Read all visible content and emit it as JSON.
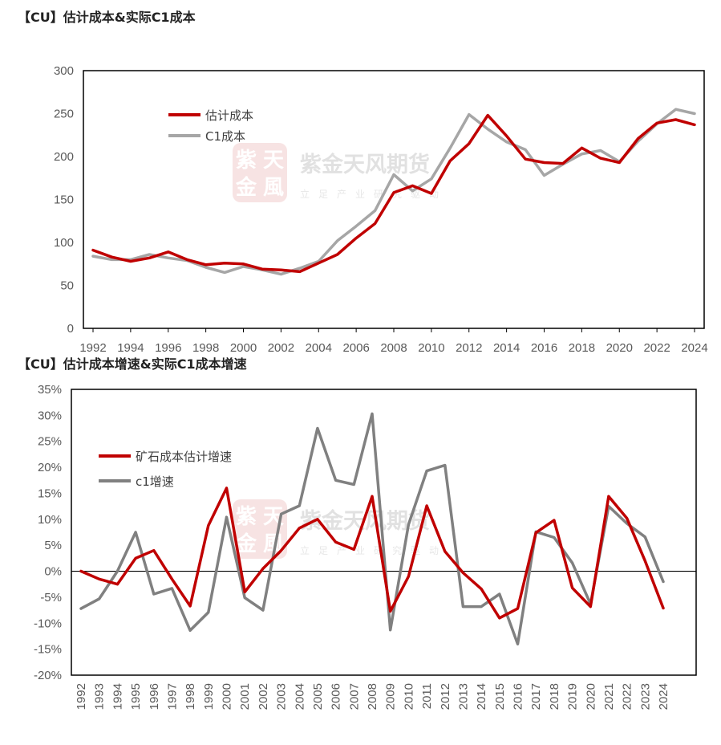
{
  "chart_data": [
    {
      "type": "line",
      "title": "【CU】估计成本&实际C1成本",
      "x": [
        1992,
        1993,
        1994,
        1995,
        1996,
        1997,
        1998,
        1999,
        2000,
        2001,
        2002,
        2003,
        2004,
        2005,
        2006,
        2007,
        2008,
        2009,
        2010,
        2011,
        2012,
        2013,
        2014,
        2015,
        2016,
        2017,
        2018,
        2019,
        2020,
        2021,
        2022,
        2023,
        2024
      ],
      "x_tick_labels": [
        "1992",
        "1994",
        "1996",
        "1998",
        "2000",
        "2002",
        "2004",
        "2006",
        "2008",
        "2010",
        "2012",
        "2014",
        "2016",
        "2018",
        "2020",
        "2022",
        "2024"
      ],
      "ylim": [
        0,
        300
      ],
      "y_tick_labels": [
        "0",
        "50",
        "100",
        "150",
        "200",
        "250",
        "300"
      ],
      "grid": false,
      "legend_position": "top-left",
      "series": [
        {
          "name": "估计成本",
          "color": "#c00000",
          "values": [
            91,
            83,
            78,
            82,
            89,
            80,
            74,
            76,
            75,
            69,
            68,
            66,
            76,
            86,
            105,
            122,
            158,
            166,
            157,
            195,
            215,
            248,
            224,
            197,
            193,
            192,
            210,
            198,
            193,
            221,
            239,
            243,
            237
          ]
        },
        {
          "name": "C1成本",
          "color": "#a6a6a6",
          "values": [
            84,
            80,
            80,
            86,
            82,
            79,
            71,
            65,
            72,
            68,
            63,
            70,
            78,
            102,
            119,
            137,
            179,
            160,
            174,
            210,
            249,
            232,
            217,
            208,
            178,
            191,
            203,
            207,
            194,
            218,
            238,
            255,
            250
          ]
        }
      ]
    },
    {
      "type": "line",
      "title": "【CU】估计成本增速&实际C1成本增速",
      "x": [
        1992,
        1993,
        1994,
        1995,
        1996,
        1997,
        1998,
        1999,
        2000,
        2001,
        2002,
        2003,
        2004,
        2005,
        2006,
        2007,
        2008,
        2009,
        2010,
        2011,
        2012,
        2013,
        2014,
        2015,
        2016,
        2017,
        2018,
        2019,
        2020,
        2021,
        2022,
        2023,
        2024
      ],
      "x_tick_labels": [
        "1992",
        "1993",
        "1994",
        "1995",
        "1996",
        "1997",
        "1998",
        "1999",
        "2000",
        "2001",
        "2002",
        "2003",
        "2004",
        "2005",
        "2006",
        "2007",
        "2008",
        "2009",
        "2010",
        "2011",
        "2012",
        "2013",
        "2014",
        "2015",
        "2016",
        "2017",
        "2018",
        "2019",
        "2020",
        "2021",
        "2022",
        "2023",
        "2024"
      ],
      "ylim": [
        -20,
        35
      ],
      "y_tick_labels": [
        "-20%",
        "-15%",
        "-10%",
        "-5%",
        "0%",
        "5%",
        "10%",
        "15%",
        "20%",
        "25%",
        "30%",
        "35%"
      ],
      "grid": false,
      "legend_position": "top-left",
      "series": [
        {
          "name": "矿石成本估计增速",
          "color": "#c00000",
          "values": [
            0,
            -1.5,
            -2.5,
            2.5,
            4,
            -1.5,
            -6.7,
            8.8,
            16,
            -4,
            0.5,
            4,
            8.3,
            10,
            5.6,
            4.2,
            14.4,
            -7.7,
            -1,
            12.6,
            3.8,
            -0.3,
            -3.4,
            -9,
            -7.2,
            7.4,
            9.8,
            -3.2,
            -6.8,
            14.4,
            10.2,
            2,
            -7.1
          ]
        },
        {
          "name": "c1增速",
          "color": "#808080",
          "values": [
            -7.2,
            -5.3,
            0,
            7.5,
            -4.4,
            -3.3,
            -11.4,
            -7.9,
            10.4,
            -5.1,
            -7.5,
            11,
            12.6,
            27.5,
            17.5,
            16.7,
            30.3,
            -11.3,
            9,
            19.3,
            20.4,
            -6.8,
            -6.8,
            -4.4,
            -14,
            7.6,
            6.5,
            1.6,
            -6.3,
            12.5,
            9.2,
            6.6,
            -2
          ]
        }
      ]
    }
  ],
  "watermark": {
    "seal_text": [
      "紫",
      "天",
      "金",
      "風"
    ],
    "company": "紫金天风期货",
    "slogan": "立足产业研究驱动"
  }
}
